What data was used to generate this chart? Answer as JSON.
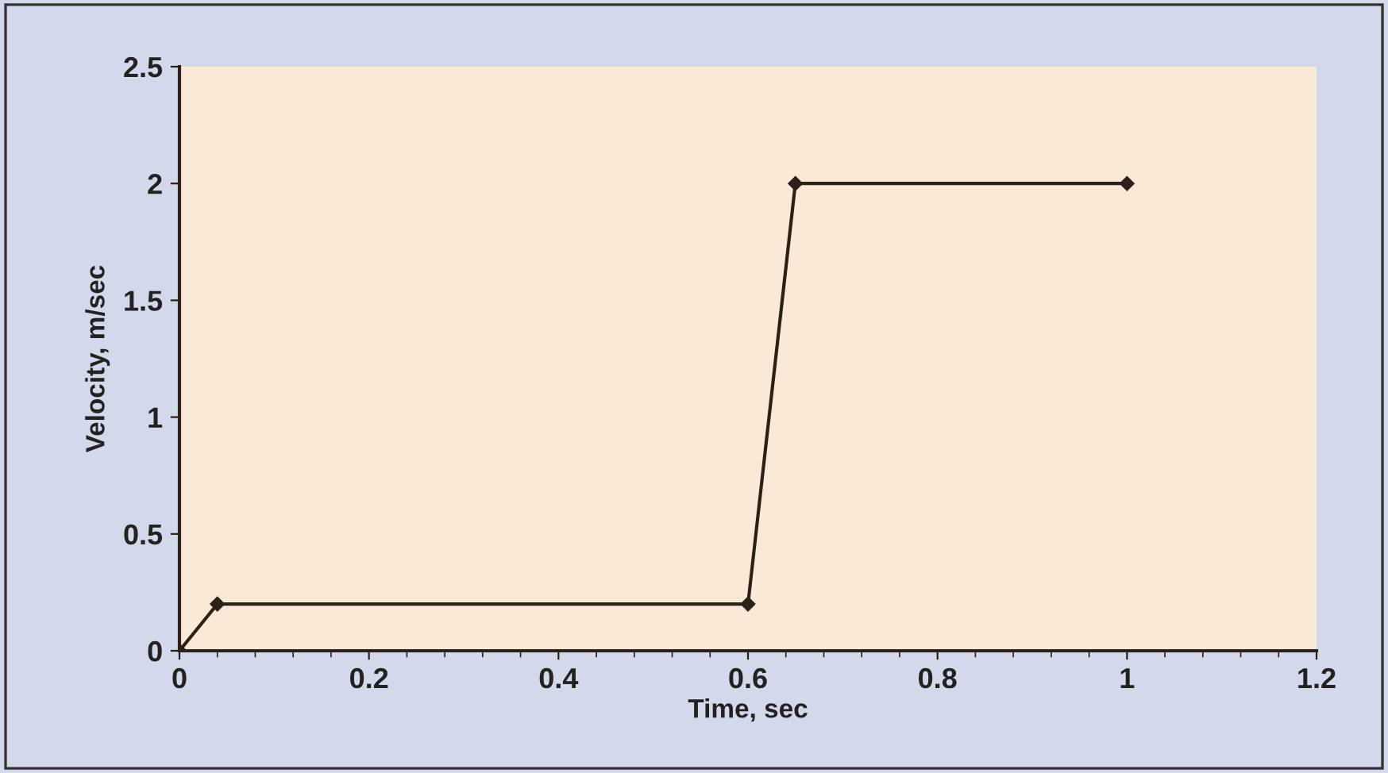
{
  "chart_data": {
    "type": "line",
    "xlabel": "Time, sec",
    "ylabel": "Velocity, m/sec",
    "x": [
      0,
      0.04,
      0.6,
      0.65,
      1
    ],
    "series": [
      {
        "color": "#2b2118",
        "values": [
          0,
          0.2,
          0.2,
          2,
          2
        ]
      }
    ],
    "xlim": [
      0,
      1.2
    ],
    "ylim": [
      0,
      2.5
    ],
    "xticks": [
      0,
      0.2,
      0.4,
      0.6,
      0.8,
      1,
      1.2
    ],
    "yticks": [
      0,
      0.5,
      1,
      1.5,
      2,
      2.5
    ],
    "grid": false,
    "marker": "diamond",
    "line_style": "solid"
  }
}
